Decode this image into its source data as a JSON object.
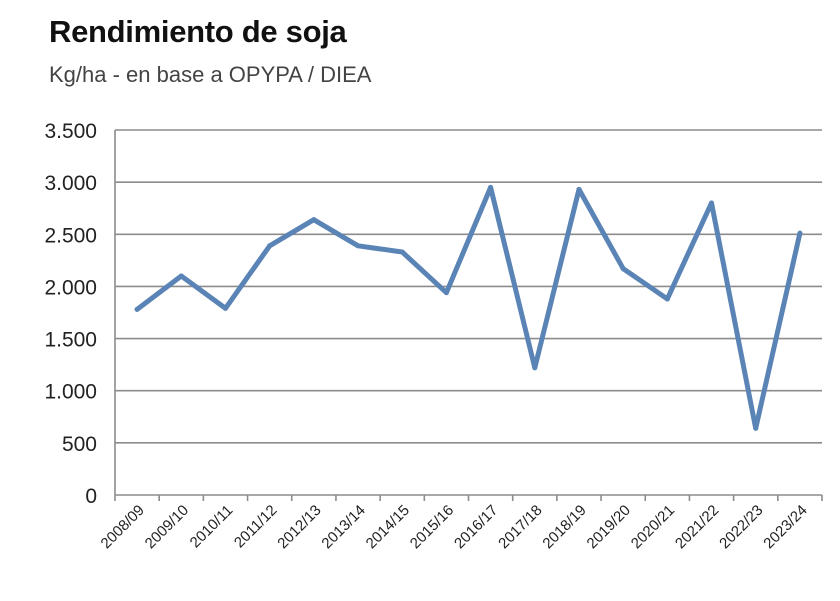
{
  "chart_data": {
    "type": "line",
    "title": "Rendimiento de soja",
    "subtitle": "Kg/ha - en base a OPYPA / DIEA",
    "categories": [
      "2008/09",
      "2009/10",
      "2010/11",
      "2011/12",
      "2012/13",
      "2013/14",
      "2014/15",
      "2015/16",
      "2016/17",
      "2017/18",
      "2018/19",
      "2019/20",
      "2020/21",
      "2021/22",
      "2022/23",
      "2023/24"
    ],
    "series": [
      {
        "values": [
          1780,
          2100,
          1790,
          2390,
          2640,
          2390,
          2330,
          1940,
          2950,
          1220,
          2930,
          2170,
          1880,
          2800,
          640,
          2510
        ]
      }
    ],
    "ylim": [
      0,
      3500
    ],
    "yticks": [
      0,
      500,
      1000,
      1500,
      2000,
      2500,
      3000,
      3500
    ],
    "ytick_labels": [
      "0",
      "500",
      "1.000",
      "1.500",
      "2.000",
      "2.500",
      "3.000",
      "3.500"
    ],
    "grid": true,
    "line_color": "#5b84b6",
    "grid_color": "#8c8c8c"
  }
}
